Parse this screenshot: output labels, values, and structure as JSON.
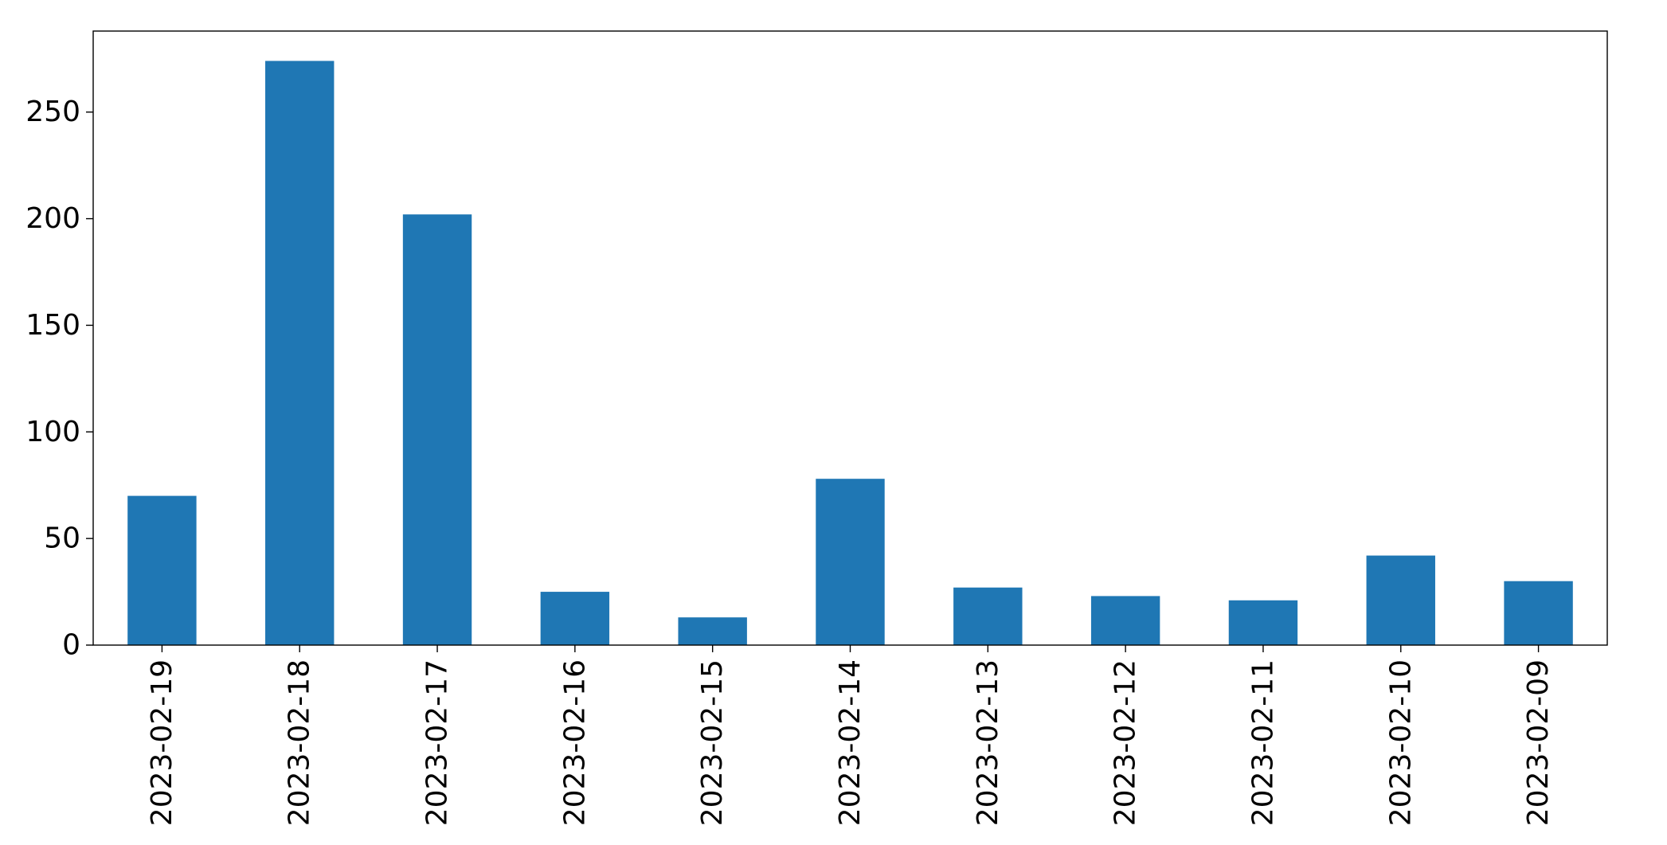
{
  "chart_data": {
    "type": "bar",
    "title": "",
    "xlabel": "",
    "ylabel": "",
    "categories": [
      "2023-02-19",
      "2023-02-18",
      "2023-02-17",
      "2023-02-16",
      "2023-02-15",
      "2023-02-14",
      "2023-02-13",
      "2023-02-12",
      "2023-02-11",
      "2023-02-10",
      "2023-02-09"
    ],
    "values": [
      70,
      274,
      202,
      25,
      13,
      78,
      27,
      23,
      21,
      42,
      30
    ],
    "ylim": [
      0,
      288
    ],
    "yticks": [
      0,
      50,
      100,
      150,
      200,
      250
    ],
    "grid": false,
    "legend": "none",
    "bar_color": "#1f77b4"
  }
}
